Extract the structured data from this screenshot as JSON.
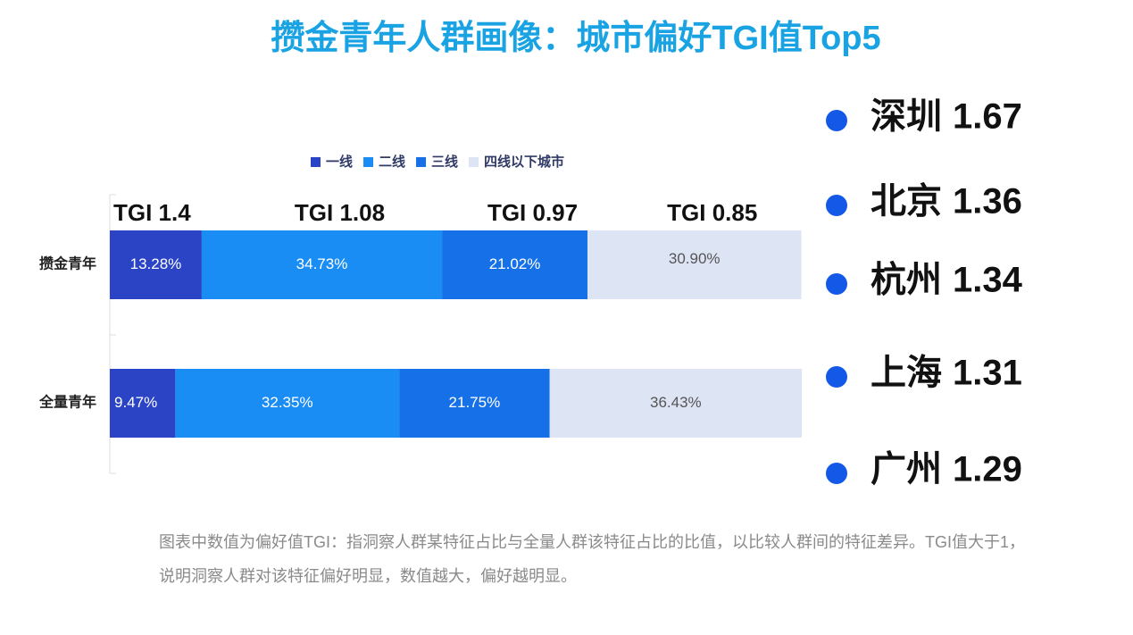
{
  "chart_data": {
    "type": "stacked-bar-horizontal",
    "title": "攒金青年人群画像：城市偏好TGI值Top5",
    "categories": [
      "攒金青年",
      "全量青年"
    ],
    "series": [
      {
        "name": "一线",
        "color": "#2b44c6",
        "values": [
          13.28,
          9.47
        ],
        "value_labels": [
          "13.28%",
          "9.47%"
        ]
      },
      {
        "name": "二线",
        "color": "#1a8df5",
        "values": [
          34.73,
          32.35
        ],
        "value_labels": [
          "34.73%",
          "32.35%"
        ]
      },
      {
        "name": "三线",
        "color": "#1671e8",
        "values": [
          21.02,
          21.75
        ],
        "value_labels": [
          "21.02%",
          "21.75%"
        ]
      },
      {
        "name": "四线以下城市",
        "color": "#dde4f4",
        "values": [
          30.9,
          36.43
        ],
        "value_labels": [
          "30.90%",
          "36.43%"
        ]
      }
    ],
    "xlim": [
      0,
      100
    ],
    "annotations": [
      "TGI 1.4",
      "TGI 1.08",
      "TGI 0.97",
      "TGI 0.85"
    ]
  },
  "city_ranking": [
    {
      "name": "深圳",
      "tgi": 1.67
    },
    {
      "name": "北京",
      "tgi": 1.36
    },
    {
      "name": "杭州",
      "tgi": 1.34
    },
    {
      "name": "上海",
      "tgi": 1.31
    },
    {
      "name": "广州",
      "tgi": 1.29
    }
  ],
  "note": "图表中数值为偏好值TGI：指洞察人群某特征占比与全量人群该特征占比的比值，以比较人群间的特征差异。TGI值大于1，说明洞察人群对该特征偏好明显，数值越大，偏好越明显。"
}
